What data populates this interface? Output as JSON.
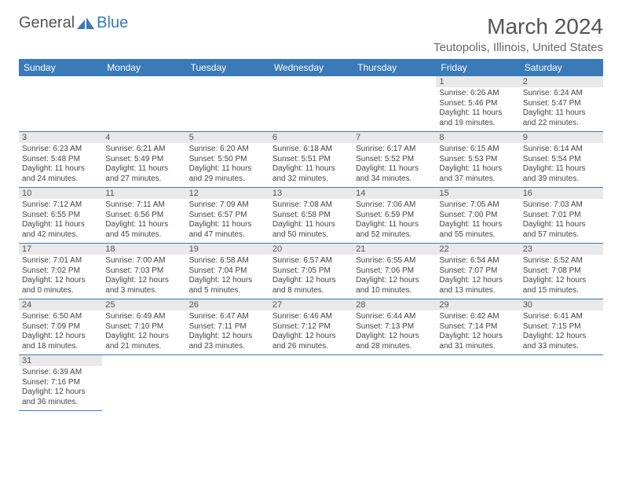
{
  "logo": {
    "text1": "General",
    "text2": "Blue"
  },
  "title": "March 2024",
  "location": "Teutopolis, Illinois, United States",
  "colors": {
    "header_bg": "#3a7ab8",
    "header_fg": "#ffffff",
    "daynum_bg": "#e9e9e9",
    "row_border": "#3a7ab8",
    "text": "#444444",
    "title_color": "#555555"
  },
  "weekdays": [
    "Sunday",
    "Monday",
    "Tuesday",
    "Wednesday",
    "Thursday",
    "Friday",
    "Saturday"
  ],
  "weeks": [
    [
      null,
      null,
      null,
      null,
      null,
      {
        "n": "1",
        "sunrise": "Sunrise: 6:26 AM",
        "sunset": "Sunset: 5:46 PM",
        "daylight": "Daylight: 11 hours and 19 minutes."
      },
      {
        "n": "2",
        "sunrise": "Sunrise: 6:24 AM",
        "sunset": "Sunset: 5:47 PM",
        "daylight": "Daylight: 11 hours and 22 minutes."
      }
    ],
    [
      {
        "n": "3",
        "sunrise": "Sunrise: 6:23 AM",
        "sunset": "Sunset: 5:48 PM",
        "daylight": "Daylight: 11 hours and 24 minutes."
      },
      {
        "n": "4",
        "sunrise": "Sunrise: 6:21 AM",
        "sunset": "Sunset: 5:49 PM",
        "daylight": "Daylight: 11 hours and 27 minutes."
      },
      {
        "n": "5",
        "sunrise": "Sunrise: 6:20 AM",
        "sunset": "Sunset: 5:50 PM",
        "daylight": "Daylight: 11 hours and 29 minutes."
      },
      {
        "n": "6",
        "sunrise": "Sunrise: 6:18 AM",
        "sunset": "Sunset: 5:51 PM",
        "daylight": "Daylight: 11 hours and 32 minutes."
      },
      {
        "n": "7",
        "sunrise": "Sunrise: 6:17 AM",
        "sunset": "Sunset: 5:52 PM",
        "daylight": "Daylight: 11 hours and 34 minutes."
      },
      {
        "n": "8",
        "sunrise": "Sunrise: 6:15 AM",
        "sunset": "Sunset: 5:53 PM",
        "daylight": "Daylight: 11 hours and 37 minutes."
      },
      {
        "n": "9",
        "sunrise": "Sunrise: 6:14 AM",
        "sunset": "Sunset: 5:54 PM",
        "daylight": "Daylight: 11 hours and 39 minutes."
      }
    ],
    [
      {
        "n": "10",
        "sunrise": "Sunrise: 7:12 AM",
        "sunset": "Sunset: 6:55 PM",
        "daylight": "Daylight: 11 hours and 42 minutes."
      },
      {
        "n": "11",
        "sunrise": "Sunrise: 7:11 AM",
        "sunset": "Sunset: 6:56 PM",
        "daylight": "Daylight: 11 hours and 45 minutes."
      },
      {
        "n": "12",
        "sunrise": "Sunrise: 7:09 AM",
        "sunset": "Sunset: 6:57 PM",
        "daylight": "Daylight: 11 hours and 47 minutes."
      },
      {
        "n": "13",
        "sunrise": "Sunrise: 7:08 AM",
        "sunset": "Sunset: 6:58 PM",
        "daylight": "Daylight: 11 hours and 50 minutes."
      },
      {
        "n": "14",
        "sunrise": "Sunrise: 7:06 AM",
        "sunset": "Sunset: 6:59 PM",
        "daylight": "Daylight: 11 hours and 52 minutes."
      },
      {
        "n": "15",
        "sunrise": "Sunrise: 7:05 AM",
        "sunset": "Sunset: 7:00 PM",
        "daylight": "Daylight: 11 hours and 55 minutes."
      },
      {
        "n": "16",
        "sunrise": "Sunrise: 7:03 AM",
        "sunset": "Sunset: 7:01 PM",
        "daylight": "Daylight: 11 hours and 57 minutes."
      }
    ],
    [
      {
        "n": "17",
        "sunrise": "Sunrise: 7:01 AM",
        "sunset": "Sunset: 7:02 PM",
        "daylight": "Daylight: 12 hours and 0 minutes."
      },
      {
        "n": "18",
        "sunrise": "Sunrise: 7:00 AM",
        "sunset": "Sunset: 7:03 PM",
        "daylight": "Daylight: 12 hours and 3 minutes."
      },
      {
        "n": "19",
        "sunrise": "Sunrise: 6:58 AM",
        "sunset": "Sunset: 7:04 PM",
        "daylight": "Daylight: 12 hours and 5 minutes."
      },
      {
        "n": "20",
        "sunrise": "Sunrise: 6:57 AM",
        "sunset": "Sunset: 7:05 PM",
        "daylight": "Daylight: 12 hours and 8 minutes."
      },
      {
        "n": "21",
        "sunrise": "Sunrise: 6:55 AM",
        "sunset": "Sunset: 7:06 PM",
        "daylight": "Daylight: 12 hours and 10 minutes."
      },
      {
        "n": "22",
        "sunrise": "Sunrise: 6:54 AM",
        "sunset": "Sunset: 7:07 PM",
        "daylight": "Daylight: 12 hours and 13 minutes."
      },
      {
        "n": "23",
        "sunrise": "Sunrise: 6:52 AM",
        "sunset": "Sunset: 7:08 PM",
        "daylight": "Daylight: 12 hours and 15 minutes."
      }
    ],
    [
      {
        "n": "24",
        "sunrise": "Sunrise: 6:50 AM",
        "sunset": "Sunset: 7:09 PM",
        "daylight": "Daylight: 12 hours and 18 minutes."
      },
      {
        "n": "25",
        "sunrise": "Sunrise: 6:49 AM",
        "sunset": "Sunset: 7:10 PM",
        "daylight": "Daylight: 12 hours and 21 minutes."
      },
      {
        "n": "26",
        "sunrise": "Sunrise: 6:47 AM",
        "sunset": "Sunset: 7:11 PM",
        "daylight": "Daylight: 12 hours and 23 minutes."
      },
      {
        "n": "27",
        "sunrise": "Sunrise: 6:46 AM",
        "sunset": "Sunset: 7:12 PM",
        "daylight": "Daylight: 12 hours and 26 minutes."
      },
      {
        "n": "28",
        "sunrise": "Sunrise: 6:44 AM",
        "sunset": "Sunset: 7:13 PM",
        "daylight": "Daylight: 12 hours and 28 minutes."
      },
      {
        "n": "29",
        "sunrise": "Sunrise: 6:42 AM",
        "sunset": "Sunset: 7:14 PM",
        "daylight": "Daylight: 12 hours and 31 minutes."
      },
      {
        "n": "30",
        "sunrise": "Sunrise: 6:41 AM",
        "sunset": "Sunset: 7:15 PM",
        "daylight": "Daylight: 12 hours and 33 minutes."
      }
    ],
    [
      {
        "n": "31",
        "sunrise": "Sunrise: 6:39 AM",
        "sunset": "Sunset: 7:16 PM",
        "daylight": "Daylight: 12 hours and 36 minutes."
      },
      null,
      null,
      null,
      null,
      null,
      null
    ]
  ]
}
